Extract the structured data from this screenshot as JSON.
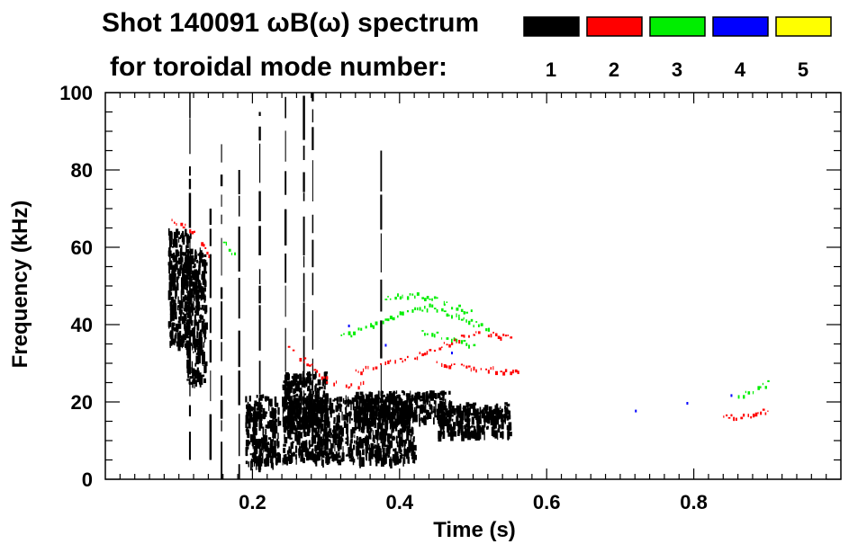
{
  "chart_data": {
    "type": "heatmap",
    "title_line1": "Shot 140091 ωB(ω) spectrum",
    "title_line2": "for toroidal mode number:",
    "xlabel": "Time (s)",
    "ylabel": "Frequency (kHz)",
    "xlim": [
      0.0,
      1.0
    ],
    "ylim": [
      0,
      100
    ],
    "xticks": [
      0.2,
      0.4,
      0.6,
      0.8
    ],
    "xtick_labels": [
      "0.2",
      "0.4",
      "0.6",
      "0.8"
    ],
    "yticks": [
      0,
      20,
      40,
      60,
      80,
      100
    ],
    "ytick_labels": [
      "0",
      "20",
      "40",
      "60",
      "80",
      "100"
    ],
    "legend": [
      {
        "mode": "1",
        "color": "#000000"
      },
      {
        "mode": "2",
        "color": "#ff0000"
      },
      {
        "mode": "3",
        "color": "#00ee00"
      },
      {
        "mode": "4",
        "color": "#0000ff"
      },
      {
        "mode": "5",
        "color": "#ffff00"
      }
    ],
    "features": [
      {
        "mode": 1,
        "kind": "blob",
        "t": [
          0.085,
          0.115
        ],
        "f": [
          35,
          65
        ]
      },
      {
        "mode": 1,
        "kind": "blob",
        "t": [
          0.11,
          0.135
        ],
        "f": [
          25,
          60
        ]
      },
      {
        "mode": 1,
        "kind": "blob",
        "t": [
          0.19,
          0.235
        ],
        "f": [
          4,
          22
        ]
      },
      {
        "mode": 1,
        "kind": "blob",
        "t": [
          0.24,
          0.42
        ],
        "f": [
          5,
          22
        ]
      },
      {
        "mode": 1,
        "kind": "blob",
        "t": [
          0.24,
          0.3
        ],
        "f": [
          14,
          28
        ]
      },
      {
        "mode": 1,
        "kind": "blob",
        "t": [
          0.34,
          0.47
        ],
        "f": [
          15,
          23
        ]
      },
      {
        "mode": 1,
        "kind": "blob",
        "t": [
          0.45,
          0.55
        ],
        "f": [
          12,
          20
        ]
      },
      {
        "mode": 1,
        "kind": "vline",
        "t": 0.115,
        "f": [
          5,
          100
        ]
      },
      {
        "mode": 1,
        "kind": "vline",
        "t": 0.143,
        "f": [
          5,
          70
        ]
      },
      {
        "mode": 1,
        "kind": "vline",
        "t": 0.158,
        "f": [
          0,
          88
        ]
      },
      {
        "mode": 1,
        "kind": "vline",
        "t": 0.182,
        "f": [
          0,
          80
        ]
      },
      {
        "mode": 1,
        "kind": "vline",
        "t": 0.21,
        "f": [
          3,
          95
        ]
      },
      {
        "mode": 1,
        "kind": "vline",
        "t": 0.245,
        "f": [
          20,
          100
        ]
      },
      {
        "mode": 1,
        "kind": "vline",
        "t": 0.27,
        "f": [
          15,
          100
        ]
      },
      {
        "mode": 1,
        "kind": "vline",
        "t": 0.282,
        "f": [
          5,
          100
        ]
      },
      {
        "mode": 1,
        "kind": "vline",
        "t": 0.375,
        "f": [
          20,
          85
        ]
      },
      {
        "mode": 2,
        "kind": "track",
        "points": [
          [
            0.09,
            67
          ],
          [
            0.105,
            66
          ],
          [
            0.12,
            64
          ]
        ]
      },
      {
        "mode": 2,
        "kind": "track",
        "points": [
          [
            0.13,
            62
          ],
          [
            0.14,
            58
          ]
        ]
      },
      {
        "mode": 2,
        "kind": "track",
        "points": [
          [
            0.245,
            35
          ],
          [
            0.27,
            31
          ],
          [
            0.3,
            26
          ],
          [
            0.33,
            24
          ],
          [
            0.35,
            25
          ]
        ]
      },
      {
        "mode": 2,
        "kind": "track",
        "points": [
          [
            0.34,
            28
          ],
          [
            0.38,
            30
          ],
          [
            0.42,
            32
          ],
          [
            0.46,
            35
          ],
          [
            0.5,
            38
          ],
          [
            0.55,
            37
          ]
        ]
      },
      {
        "mode": 2,
        "kind": "track",
        "points": [
          [
            0.45,
            30
          ],
          [
            0.5,
            29
          ],
          [
            0.56,
            28
          ]
        ]
      },
      {
        "mode": 2,
        "kind": "track",
        "points": [
          [
            0.84,
            16
          ],
          [
            0.88,
            17
          ],
          [
            0.9,
            18
          ]
        ]
      },
      {
        "mode": 3,
        "kind": "track",
        "points": [
          [
            0.16,
            62
          ],
          [
            0.175,
            58
          ]
        ]
      },
      {
        "mode": 3,
        "kind": "track",
        "points": [
          [
            0.32,
            37
          ],
          [
            0.36,
            40
          ],
          [
            0.4,
            43
          ],
          [
            0.44,
            45
          ],
          [
            0.48,
            42
          ],
          [
            0.52,
            39
          ]
        ]
      },
      {
        "mode": 3,
        "kind": "track",
        "points": [
          [
            0.38,
            47
          ],
          [
            0.42,
            48
          ],
          [
            0.46,
            46
          ],
          [
            0.5,
            43
          ]
        ]
      },
      {
        "mode": 3,
        "kind": "track",
        "points": [
          [
            0.43,
            38
          ],
          [
            0.47,
            37
          ],
          [
            0.5,
            35
          ]
        ]
      },
      {
        "mode": 3,
        "kind": "track",
        "points": [
          [
            0.86,
            22
          ],
          [
            0.88,
            23
          ],
          [
            0.9,
            25
          ]
        ]
      },
      {
        "mode": 4,
        "kind": "dots",
        "points": [
          [
            0.33,
            40
          ],
          [
            0.38,
            35
          ],
          [
            0.47,
            33
          ],
          [
            0.72,
            18
          ],
          [
            0.79,
            20
          ],
          [
            0.85,
            22
          ]
        ]
      }
    ]
  }
}
